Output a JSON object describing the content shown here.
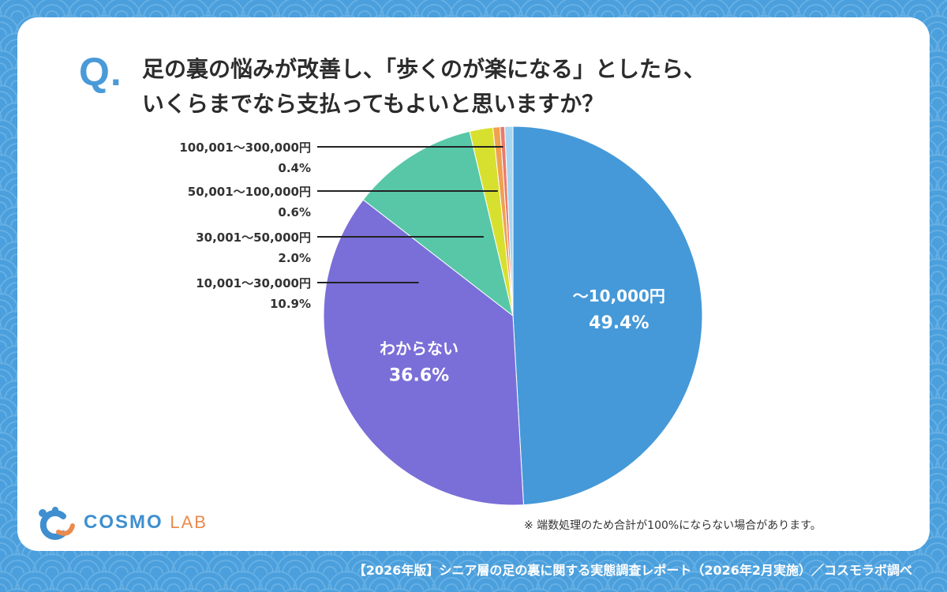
{
  "title": {
    "q": "Q",
    "dot": ".",
    "line1": "足の裏の悩みが改善し、「歩くのが楽になる」としたら、",
    "line2": "いくらまでなら支払ってもよいと思いますか？"
  },
  "chart_data": {
    "type": "pie",
    "title": "足の裏の悩みが改善し、「歩くのが楽になる」としたら、いくらまでなら支払ってもよいと思いますか？",
    "start_angle_deg": 0,
    "direction": "clockwise",
    "slices": [
      {
        "label": "〜10,000円",
        "value": 49.4,
        "value_label": "49.4%",
        "color": "#4599d8",
        "placement": "inside"
      },
      {
        "label": "わからない",
        "value": 36.6,
        "value_label": "36.6%",
        "color": "#7a6fd8",
        "placement": "inside"
      },
      {
        "label": "10,001〜30,000円",
        "value": 10.9,
        "value_label": "10.9%",
        "color": "#57c7a8",
        "placement": "outside"
      },
      {
        "label": "30,001〜50,000円",
        "value": 2.0,
        "value_label": "2.0%",
        "color": "#d8e02f",
        "placement": "outside"
      },
      {
        "label": "50,001〜100,000円",
        "value": 0.6,
        "value_label": "0.6%",
        "color": "#f0a050",
        "placement": "outside"
      },
      {
        "label": "100,001〜300,000円",
        "value": 0.4,
        "value_label": "0.4%",
        "color": "#e97b6d",
        "placement": "outside"
      },
      {
        "label": "",
        "value": 0.7,
        "value_label": "",
        "color": "#a7d6f2",
        "placement": "none"
      }
    ]
  },
  "note": "※ 端数処理のため合計が100%にならない場合があります。",
  "logo": {
    "main": "COSMO",
    "sub": "LAB"
  },
  "footer": "【2026年版】シニア層の足の裏に関する実態調査レポート（2026年2月実施）／コスモラボ調べ",
  "colors": {
    "background": "#4a9fdc",
    "accent": "#4a9ad8",
    "card": "#ffffff"
  }
}
